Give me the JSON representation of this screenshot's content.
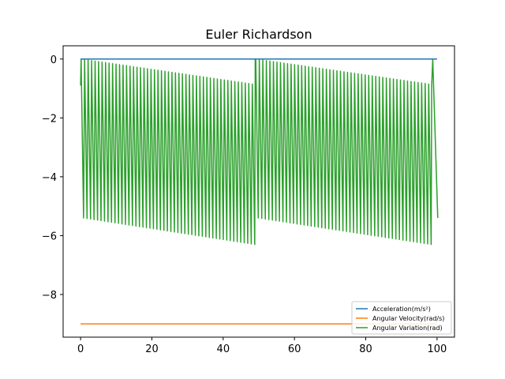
{
  "chart_data": {
    "type": "line",
    "title": "Euler Richardson",
    "xlabel": "",
    "ylabel": "",
    "xlim": [
      -4.9,
      104.9
    ],
    "ylim": [
      -9.45,
      0.45
    ],
    "xticks": [
      0,
      20,
      40,
      60,
      80,
      100
    ],
    "yticks": [
      0,
      -2,
      -4,
      -6,
      -8
    ],
    "xtick_labels": [
      "0",
      "20",
      "40",
      "60",
      "80",
      "100"
    ],
    "ytick_labels": [
      "0",
      "−2",
      "−4",
      "−6",
      "−8"
    ],
    "legend": {
      "placement": "lower-right"
    },
    "grid": false,
    "series": [
      {
        "name": "Acceleration(m/s²)",
        "color": "#1f77b4",
        "style": "constant",
        "x": [
          0,
          100
        ],
        "y": [
          0.0,
          0.0
        ]
      },
      {
        "name": "Angular Velocity(rad/s)",
        "color": "#ff7f0e",
        "style": "constant",
        "x": [
          0,
          100
        ],
        "y": [
          -9.0,
          -9.0
        ]
      },
      {
        "name": "Angular Variation(rad)",
        "color": "#2ca02c",
        "style": "oscillation",
        "oscillations_per_segment": 50,
        "segments": [
          {
            "x_start": 0,
            "x_end": 49,
            "start_low": -0.9,
            "top_start": 0.0,
            "top_end": -0.85,
            "bottom_start": -5.4,
            "bottom_end": -6.3
          },
          {
            "x_start": 49,
            "x_end": 98.5,
            "start_low": -0.0,
            "top_start": 0.0,
            "top_end": -0.85,
            "bottom_start": -5.4,
            "bottom_end": -6.3
          },
          {
            "x_start": 98.5,
            "x_end": 100.5,
            "start_low": -0.9,
            "top_start": 0.0,
            "top_end": 0.0,
            "bottom_start": -5.4,
            "bottom_end": -5.4
          }
        ]
      }
    ]
  }
}
